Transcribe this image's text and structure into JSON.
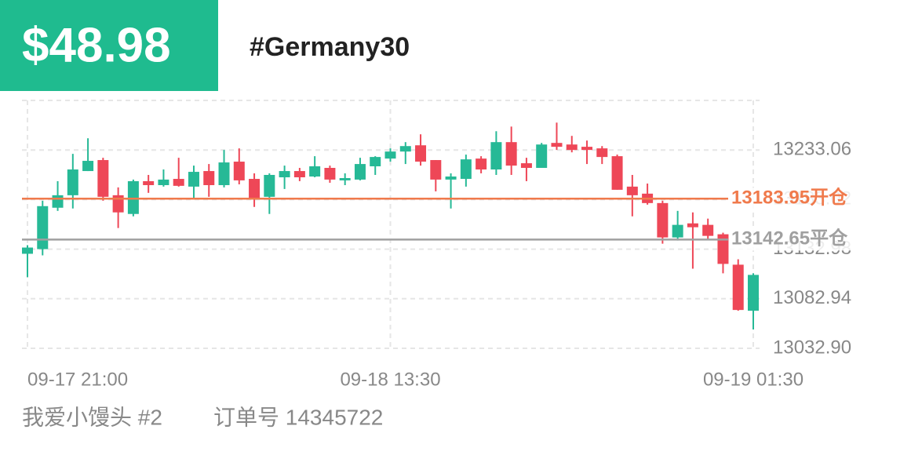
{
  "header": {
    "price": "$48.98",
    "symbol": "#Germany30"
  },
  "footer": {
    "user": "我爱小馒头 #2",
    "order": "订单号 14345722"
  },
  "chart_data": {
    "type": "candlestick",
    "categories": [
      "09-17 21:00",
      null,
      null,
      null,
      null,
      null,
      null,
      null,
      null,
      null,
      null,
      null,
      null,
      null,
      null,
      null,
      null,
      null,
      null,
      null,
      null,
      null,
      null,
      null,
      "09-18 13:30",
      null,
      null,
      null,
      null,
      null,
      null,
      null,
      null,
      null,
      null,
      null,
      null,
      null,
      null,
      null,
      null,
      null,
      null,
      null,
      null,
      null,
      null,
      null,
      "09-19 01:30"
    ],
    "open": [
      13128.3,
      13133.0,
      13174.8,
      13187.4,
      13211.8,
      13222.9,
      13187.4,
      13168.5,
      13201.6,
      13197.6,
      13203.9,
      13196.1,
      13211.8,
      13197.6,
      13221.3,
      13203.9,
      13185.8,
      13205.5,
      13211.8,
      13206.3,
      13215.0,
      13202.4,
      13203.2,
      13216.6,
      13224.4,
      13231.5,
      13237.8,
      13222.9,
      13203.2,
      13203.9,
      13224.4,
      13213.4,
      13241.0,
      13219.7,
      13215.0,
      13240.2,
      13238.6,
      13236.3,
      13234.7,
      13226.8,
      13196.1,
      13189.0,
      13179.5,
      13144.8,
      13159.0,
      13157.5,
      13148.0,
      13117.3,
      13070.8
    ],
    "high": [
      13137.0,
      13181.9,
      13201.6,
      13229.2,
      13244.9,
      13225.2,
      13195.3,
      13203.2,
      13207.9,
      13213.4,
      13225.2,
      13217.3,
      13218.9,
      13233.1,
      13234.7,
      13209.5,
      13209.5,
      13217.3,
      13215.0,
      13226.8,
      13217.3,
      13209.5,
      13225.2,
      13226.8,
      13234.7,
      13241.0,
      13248.9,
      13222.9,
      13209.5,
      13228.4,
      13226.8,
      13252.0,
      13256.7,
      13225.2,
      13240.2,
      13260.7,
      13247.3,
      13242.6,
      13237.0,
      13228.4,
      13207.9,
      13199.2,
      13181.9,
      13171.6,
      13170.1,
      13163.8,
      13149.6,
      13122.8,
      13108.6
    ],
    "low": [
      13104.7,
      13126.7,
      13171.6,
      13174.0,
      13211.8,
      13181.9,
      13154.3,
      13166.1,
      13189.8,
      13196.1,
      13196.1,
      13184.2,
      13185.8,
      13195.3,
      13198.4,
      13175.6,
      13168.5,
      13193.7,
      13201.6,
      13205.5,
      13200.0,
      13197.6,
      13202.4,
      13207.9,
      13221.3,
      13218.9,
      13217.3,
      13191.3,
      13174.0,
      13196.1,
      13209.5,
      13207.9,
      13207.9,
      13201.6,
      13215.0,
      13233.1,
      13230.7,
      13218.9,
      13218.9,
      13192.9,
      13166.1,
      13177.9,
      13138.5,
      13141.7,
      13113.3,
      13142.5,
      13108.6,
      13070.8,
      13051.9
    ],
    "close": [
      13134.6,
      13176.4,
      13187.4,
      13213.4,
      13222.1,
      13185.8,
      13170.1,
      13201.6,
      13197.6,
      13203.2,
      13196.9,
      13211.0,
      13197.6,
      13220.5,
      13202.4,
      13184.2,
      13207.9,
      13211.8,
      13205.5,
      13216.6,
      13203.2,
      13204.7,
      13218.9,
      13226.0,
      13231.5,
      13237.0,
      13221.3,
      13203.2,
      13206.3,
      13223.6,
      13213.4,
      13241.0,
      13217.3,
      13215.0,
      13238.6,
      13236.3,
      13233.1,
      13233.1,
      13226.0,
      13192.9,
      13187.4,
      13179.5,
      13144.8,
      13157.5,
      13155.1,
      13146.4,
      13118.1,
      13071.6,
      13107.0
    ],
    "up_color": "#26b996",
    "down_color": "#ee4757",
    "ylim": [
      13032.9,
      13283.1
    ],
    "yticks": [
      {
        "value": 13032.9,
        "label": "13032.90"
      },
      13082.94,
      13132.98,
      13183.02,
      13233.06
    ],
    "grid": true,
    "lines": [
      {
        "value": 13183.95,
        "label": "13183.95开仓",
        "color": "#f07a4c"
      },
      {
        "value": 13142.65,
        "label": "13142.65平仓",
        "color": "#a0a0a0"
      }
    ]
  }
}
